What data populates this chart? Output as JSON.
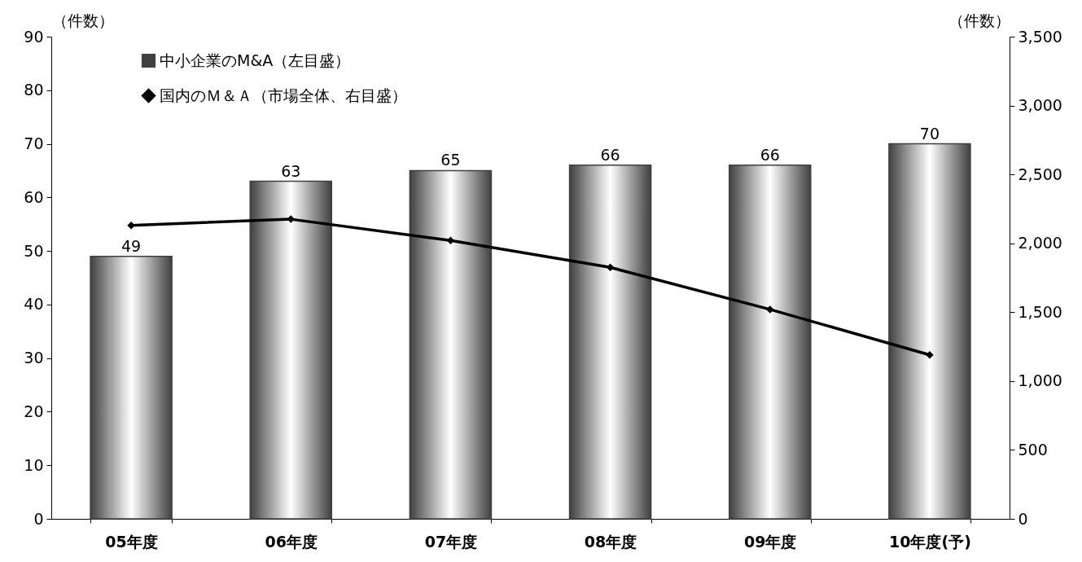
{
  "chart_data": {
    "type": "bar",
    "categories": [
      "05年度",
      "06年度",
      "07年度",
      "08年度",
      "09年度",
      "10年度(予)"
    ],
    "ylabel": "（件数）",
    "y2label": "（件数）",
    "series": [
      {
        "name": "中小企業のM&A（左目盛）",
        "type": "bar",
        "color": "#404040",
        "values": [
          49,
          63,
          65,
          66,
          66,
          70
        ],
        "value_labels": [
          "49",
          "63",
          "65",
          "66",
          "66",
          "70"
        ]
      },
      {
        "name": "国内のＭ＆Ａ（市場全体、右目盛）",
        "type": "line",
        "axis": "y2",
        "color": "#000000",
        "values": [
          2130,
          2175,
          2020,
          1825,
          1520,
          1190
        ]
      }
    ],
    "ylim": [
      0,
      90
    ],
    "yticks": [
      0,
      10,
      20,
      30,
      40,
      50,
      60,
      70,
      80,
      90
    ],
    "y2lim": [
      0,
      3500
    ],
    "y2ticks": [
      {
        "value": 0,
        "label": "0"
      },
      {
        "value": 500,
        "label": "500"
      },
      {
        "value": 1000,
        "label": "1,000"
      },
      {
        "value": 1500,
        "label": "1,500"
      },
      {
        "value": 2000,
        "label": "2,000"
      },
      {
        "value": 2500,
        "label": "2,500"
      },
      {
        "value": 3000,
        "label": "3,000"
      },
      {
        "value": 3500,
        "label": "3,500"
      }
    ],
    "legend": "top left",
    "marker": "diamond",
    "grid": false
  }
}
